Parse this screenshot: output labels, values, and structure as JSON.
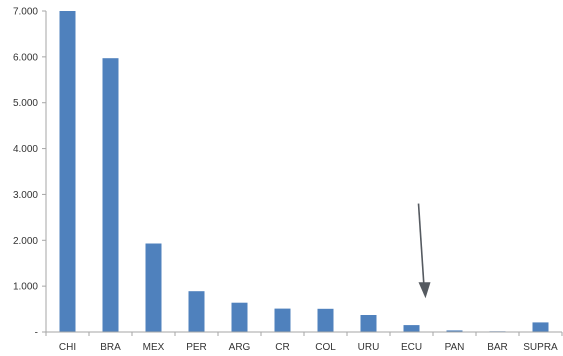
{
  "chart_data": {
    "type": "bar",
    "categories": [
      "CHI",
      "BRA",
      "MEX",
      "PER",
      "ARG",
      "CR",
      "COL",
      "URU",
      "ECU",
      "PAN",
      "BAR",
      "SUPRA"
    ],
    "values": [
      7000,
      5970,
      1930,
      890,
      640,
      510,
      505,
      370,
      150,
      35,
      15,
      210
    ],
    "ylim": [
      0,
      7000
    ],
    "yticks": [
      0,
      1000,
      2000,
      3000,
      4000,
      5000,
      6000,
      7000
    ],
    "ytick_labels": [
      "-",
      "1.000",
      "2.000",
      "3.000",
      "4.000",
      "5.000",
      "6.000",
      "7.000"
    ],
    "grid": false,
    "legend": "none",
    "bar_color": "#4f81bd",
    "axis_color": "#a6a6a6",
    "annotation": {
      "type": "arrow",
      "points_to": "PAN",
      "color": "#555a60"
    }
  }
}
